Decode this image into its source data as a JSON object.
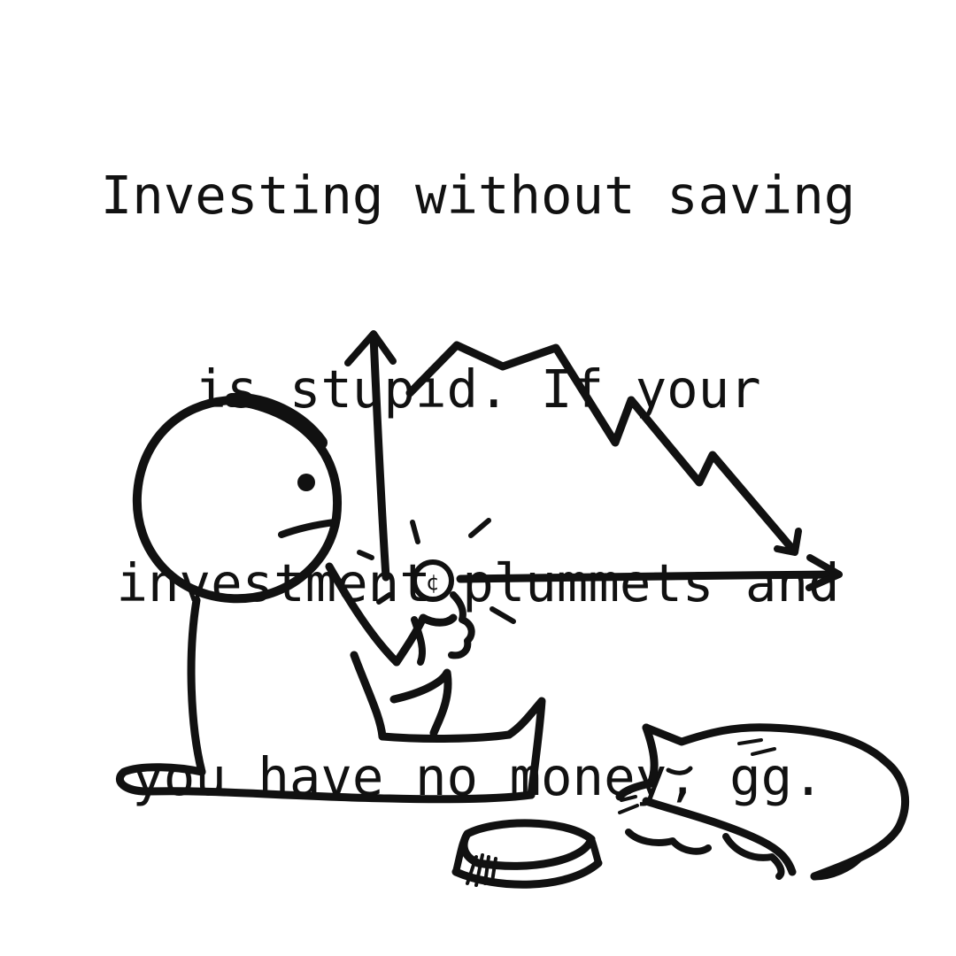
{
  "caption": {
    "lines": [
      "Investing without saving",
      "is stupid. If your",
      "investment plummets and",
      "you have no money, gg."
    ]
  },
  "illustration": {
    "coin_symbol": "¢",
    "colors": {
      "ink": "#111111",
      "background": "#ffffff"
    }
  }
}
